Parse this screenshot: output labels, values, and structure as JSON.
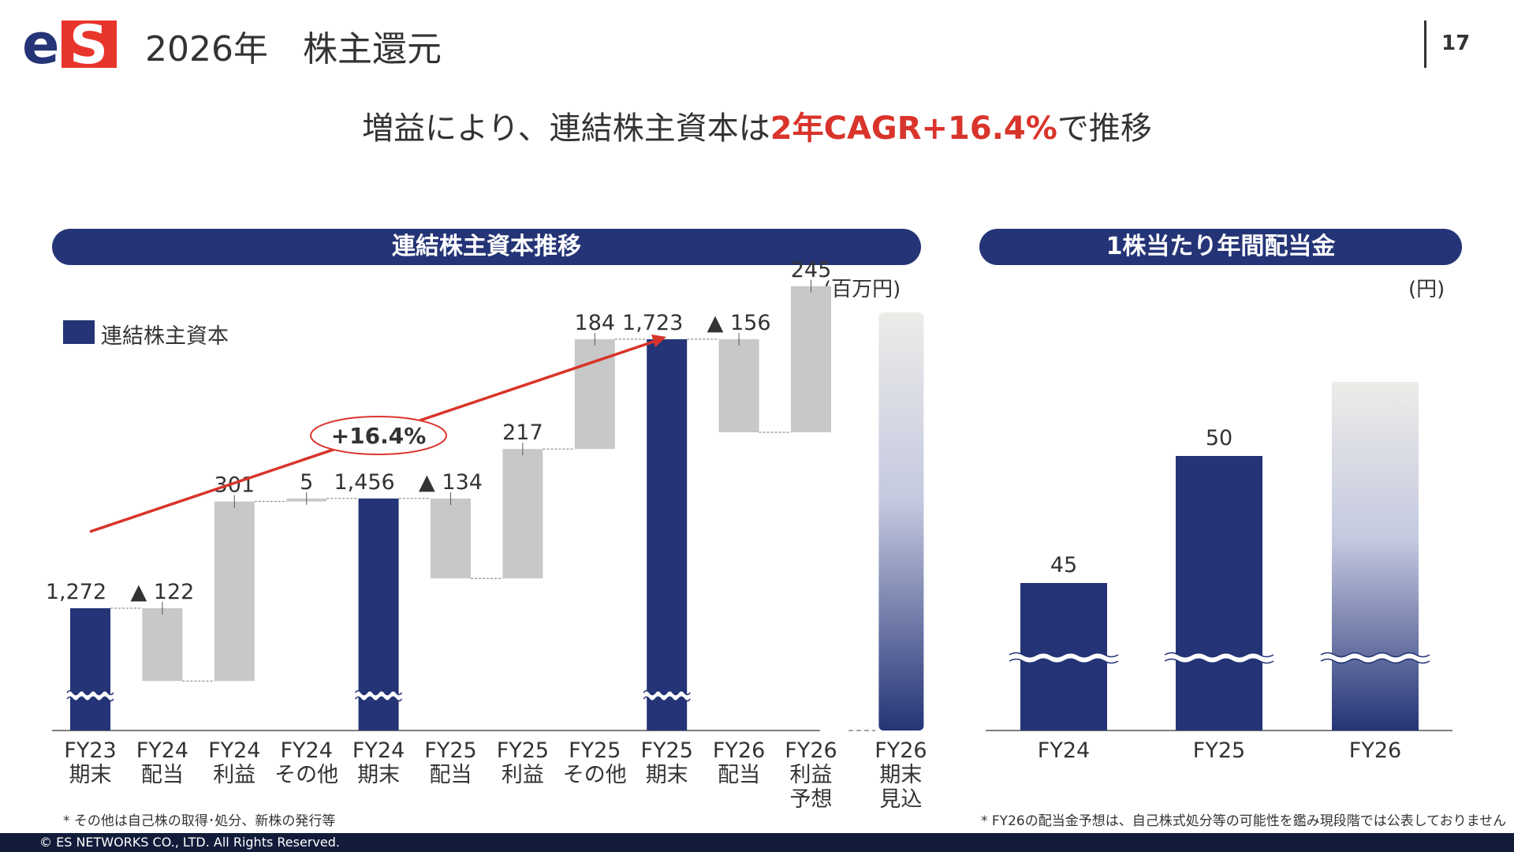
{
  "header": {
    "logo_text": "eS",
    "title": "2026年　株主還元",
    "page_number": "17"
  },
  "headline": {
    "pre": "増益により、連結株主資本は",
    "highlight": "2年CAGR+16.4%",
    "post": "で推移"
  },
  "colors": {
    "navy": "#243476",
    "gray": "#c8c8c8",
    "accent_red": "#d9342b"
  },
  "chart_data": [
    {
      "type": "bar",
      "subtype": "waterfall",
      "title": "連結株主資本推移",
      "unit": "(百万円)",
      "legend": [
        "連結株主資本"
      ],
      "axis_break": true,
      "categories": [
        [
          "FY23",
          "期末"
        ],
        [
          "FY24",
          "配当"
        ],
        [
          "FY24",
          "利益"
        ],
        [
          "FY24",
          "その他"
        ],
        [
          "FY24",
          "期末"
        ],
        [
          "FY25",
          "配当"
        ],
        [
          "FY25",
          "利益"
        ],
        [
          "FY25",
          "その他"
        ],
        [
          "FY25",
          "期末"
        ],
        [
          "FY26",
          "配当"
        ],
        [
          "FY26",
          "利益",
          "予想"
        ],
        [
          "FY26",
          "期末",
          "見込"
        ]
      ],
      "bars": [
        {
          "kind": "total",
          "value": 1272,
          "label": "1,272"
        },
        {
          "kind": "decrease",
          "value": -122,
          "label": "▲ 122"
        },
        {
          "kind": "increase",
          "value": 301,
          "label": "301"
        },
        {
          "kind": "increase",
          "value": 5,
          "label": "5"
        },
        {
          "kind": "total",
          "value": 1456,
          "label": "1,456"
        },
        {
          "kind": "decrease",
          "value": -134,
          "label": "▲ 134"
        },
        {
          "kind": "increase",
          "value": 217,
          "label": "217"
        },
        {
          "kind": "increase",
          "value": 184,
          "label": "184"
        },
        {
          "kind": "total",
          "value": 1723,
          "label": "1,723"
        },
        {
          "kind": "decrease",
          "value": -156,
          "label": "▲ 156"
        },
        {
          "kind": "increase",
          "value": 245,
          "label": "245"
        },
        {
          "kind": "forecast",
          "value": null,
          "label": ""
        }
      ],
      "annotation": {
        "text": "+16.4%",
        "from": 1272,
        "to": 1723
      }
    },
    {
      "type": "bar",
      "title": "1株当たり年間配当金",
      "unit": "(円)",
      "axis_break": true,
      "categories": [
        "FY24",
        "FY25",
        "FY26"
      ],
      "values": [
        45,
        50,
        null
      ],
      "labels": [
        "45",
        "50",
        ""
      ],
      "forecast": [
        false,
        false,
        true
      ]
    }
  ],
  "notes": {
    "left": "* その他は自己株の取得･処分、新株の発行等",
    "right": "* FY26の配当金予想は、自己株式処分等の可能性を鑑み現段階では公表しておりません"
  },
  "footer": {
    "copyright": "© ES NETWORKS CO., LTD. All Rights Reserved."
  }
}
